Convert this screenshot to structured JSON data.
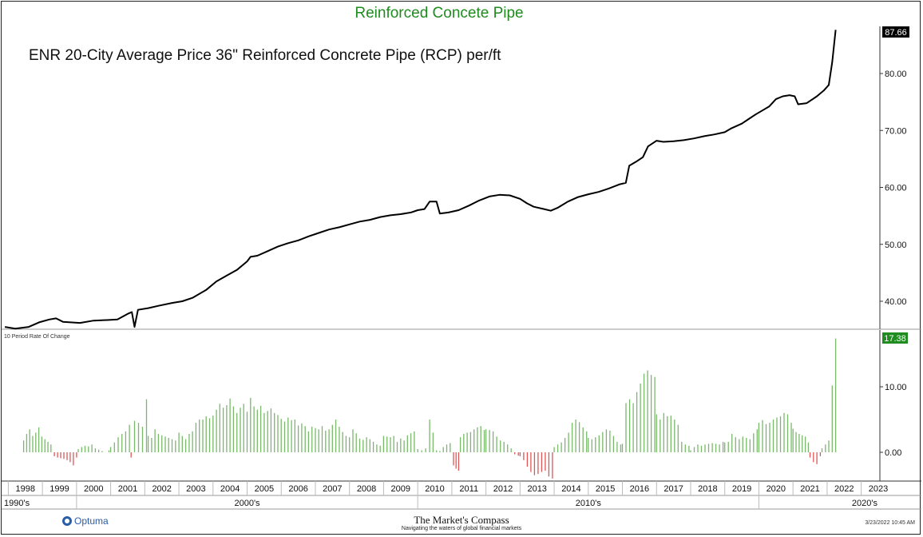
{
  "title": "Reinforced Concete Pipe",
  "chart_data": [
    {
      "type": "line",
      "title": "ENR 20-City Average Price 36\" Reinforced Concrete Pipe (RCP) per/ft",
      "ylim": [
        35.0,
        89.0
      ],
      "yticks": [
        "40.00",
        "50.00",
        "60.00",
        "70.00",
        "80.00"
      ],
      "last_value_label": "87.66",
      "x_range": [
        1997.85,
        2023.5
      ],
      "series": [
        {
          "points": [
            [
              1997.9,
              35.5
            ],
            [
              1998.2,
              35.2
            ],
            [
              1998.6,
              35.5
            ],
            [
              1998.9,
              36.3
            ],
            [
              1999.2,
              36.8
            ],
            [
              1999.4,
              37.0
            ],
            [
              1999.6,
              36.4
            ],
            [
              2000.1,
              36.2
            ],
            [
              2000.5,
              36.6
            ],
            [
              2000.9,
              36.7
            ],
            [
              2001.2,
              36.8
            ],
            [
              2001.5,
              37.8
            ],
            [
              2001.62,
              38.1
            ],
            [
              2001.7,
              35.5
            ],
            [
              2001.8,
              38.5
            ],
            [
              2002.1,
              38.8
            ],
            [
              2002.4,
              39.2
            ],
            [
              2002.8,
              39.7
            ],
            [
              2003.1,
              40.0
            ],
            [
              2003.4,
              40.6
            ],
            [
              2003.8,
              42.0
            ],
            [
              2004.1,
              43.5
            ],
            [
              2004.4,
              44.5
            ],
            [
              2004.7,
              45.5
            ],
            [
              2005.0,
              47.0
            ],
            [
              2005.1,
              47.8
            ],
            [
              2005.3,
              48.0
            ],
            [
              2005.6,
              48.8
            ],
            [
              2005.9,
              49.6
            ],
            [
              2006.2,
              50.2
            ],
            [
              2006.5,
              50.7
            ],
            [
              2006.8,
              51.4
            ],
            [
              2007.1,
              52.0
            ],
            [
              2007.4,
              52.6
            ],
            [
              2007.7,
              53.0
            ],
            [
              2008.0,
              53.5
            ],
            [
              2008.3,
              54.0
            ],
            [
              2008.6,
              54.3
            ],
            [
              2008.9,
              54.8
            ],
            [
              2009.2,
              55.1
            ],
            [
              2009.5,
              55.3
            ],
            [
              2009.8,
              55.6
            ],
            [
              2010.0,
              56.0
            ],
            [
              2010.2,
              56.2
            ],
            [
              2010.35,
              57.5
            ],
            [
              2010.55,
              57.5
            ],
            [
              2010.65,
              55.4
            ],
            [
              2010.9,
              55.6
            ],
            [
              2011.2,
              56.0
            ],
            [
              2011.5,
              56.8
            ],
            [
              2011.8,
              57.7
            ],
            [
              2012.1,
              58.4
            ],
            [
              2012.4,
              58.7
            ],
            [
              2012.7,
              58.6
            ],
            [
              2013.0,
              58.0
            ],
            [
              2013.2,
              57.2
            ],
            [
              2013.4,
              56.6
            ],
            [
              2013.7,
              56.2
            ],
            [
              2013.9,
              55.9
            ],
            [
              2014.1,
              56.4
            ],
            [
              2014.4,
              57.5
            ],
            [
              2014.7,
              58.3
            ],
            [
              2015.0,
              58.8
            ],
            [
              2015.3,
              59.2
            ],
            [
              2015.6,
              59.8
            ],
            [
              2015.9,
              60.5
            ],
            [
              2016.1,
              60.8
            ],
            [
              2016.2,
              63.8
            ],
            [
              2016.4,
              64.5
            ],
            [
              2016.6,
              65.3
            ],
            [
              2016.75,
              67.2
            ],
            [
              2017.0,
              68.2
            ],
            [
              2017.2,
              68.0
            ],
            [
              2017.5,
              68.1
            ],
            [
              2017.8,
              68.3
            ],
            [
              2018.1,
              68.6
            ],
            [
              2018.4,
              69.0
            ],
            [
              2018.7,
              69.3
            ],
            [
              2019.0,
              69.7
            ],
            [
              2019.2,
              70.4
            ],
            [
              2019.5,
              71.2
            ],
            [
              2019.7,
              72.0
            ],
            [
              2019.9,
              72.8
            ],
            [
              2020.1,
              73.5
            ],
            [
              2020.3,
              74.2
            ],
            [
              2020.5,
              75.5
            ],
            [
              2020.7,
              76.0
            ],
            [
              2020.9,
              76.2
            ],
            [
              2021.05,
              76.0
            ],
            [
              2021.15,
              74.6
            ],
            [
              2021.4,
              74.8
            ],
            [
              2021.7,
              76.0
            ],
            [
              2021.9,
              77.0
            ],
            [
              2022.05,
              78.0
            ],
            [
              2022.15,
              82.0
            ],
            [
              2022.25,
              87.66
            ]
          ]
        }
      ]
    },
    {
      "type": "bar",
      "title": "10 Period Rate Of Change",
      "ylim": [
        -5.0,
        18.0
      ],
      "yticks": [
        "0.00",
        "10.00"
      ],
      "last_value_label": "17.38",
      "bar_series": [
        {
          "from": 1998.45,
          "to": 1999.25,
          "values": [
            1.8,
            2.8,
            3.5,
            2.5,
            3.0,
            3.8,
            2.4,
            2.0,
            1.6,
            1.2
          ]
        },
        {
          "from": 1999.35,
          "to": 2000.0,
          "values": [
            -0.6,
            -0.8,
            -0.9,
            -1.0,
            -1.2,
            -1.5,
            -2.0,
            -0.8
          ]
        },
        {
          "from": 2000.05,
          "to": 2000.95,
          "values": [
            0.5,
            0.8,
            1.0,
            0.9,
            1.2,
            0.6,
            0.4,
            0.2,
            0.0,
            0.3
          ]
        },
        {
          "from": 2001.0,
          "to": 2001.55,
          "values": [
            0.8,
            1.5,
            2.3,
            2.8,
            3.2,
            4.2
          ]
        },
        {
          "from": 2001.6,
          "to": 2001.6,
          "values": [
            -0.8
          ]
        },
        {
          "from": 2001.7,
          "to": 2002.05,
          "values": [
            4.8,
            4.5,
            3.9,
            8.1
          ]
        },
        {
          "from": 2002.1,
          "to": 2002.9,
          "values": [
            2.5,
            2.2,
            3.5,
            2.8,
            2.6,
            2.4,
            2.2,
            2.0,
            1.8
          ]
        },
        {
          "from": 2003.0,
          "to": 2003.6,
          "values": [
            3.0,
            2.5,
            2.0,
            2.8,
            3.2,
            4.5,
            5.0
          ]
        },
        {
          "from": 2003.7,
          "to": 2004.9,
          "values": [
            5.0,
            5.5,
            5.2,
            5.6,
            6.5,
            7.4,
            6.8,
            7.2,
            8.2,
            7.0,
            6.0,
            6.8,
            7.4
          ]
        },
        {
          "from": 2005.0,
          "to": 2005.9,
          "values": [
            6.2,
            8.3,
            7.0,
            6.5,
            7.1,
            6.0,
            6.3,
            6.7,
            6.0,
            5.7
          ]
        },
        {
          "from": 2006.0,
          "to": 2006.9,
          "values": [
            5.1,
            4.7,
            5.3,
            4.9,
            5.0,
            4.1,
            4.4,
            4.0,
            3.2,
            3.9
          ]
        },
        {
          "from": 2007.0,
          "to": 2007.9,
          "values": [
            3.7,
            3.5,
            4.0,
            3.3,
            3.5,
            4.2,
            5.0,
            3.9,
            3.1,
            2.5
          ]
        },
        {
          "from": 2008.0,
          "to": 2008.9,
          "values": [
            2.3,
            3.5,
            2.9,
            2.1,
            1.9,
            2.3,
            2.0,
            1.6,
            1.2,
            1.0
          ]
        },
        {
          "from": 2009.0,
          "to": 2009.9,
          "values": [
            2.5,
            2.4,
            2.3,
            2.5,
            1.6,
            2.1,
            1.8,
            2.6,
            2.9,
            3.2
          ]
        },
        {
          "from": 2010.0,
          "to": 2010.35,
          "values": [
            0.5,
            0.3,
            0.6,
            5.0
          ]
        },
        {
          "from": 2010.45,
          "to": 2010.95,
          "values": [
            3.0,
            0.3,
            0.2,
            0.8,
            1.2,
            1.4
          ]
        },
        {
          "from": 2011.05,
          "to": 2011.2,
          "values": [
            -2.0,
            -2.5,
            -2.8
          ]
        },
        {
          "from": 2011.25,
          "to": 2011.95,
          "values": [
            2.3,
            2.8,
            3.0,
            3.1,
            3.5,
            3.8,
            4.0,
            3.4
          ]
        },
        {
          "from": 2012.0,
          "to": 2012.95,
          "values": [
            3.5,
            3.4,
            3.2,
            2.4,
            1.8,
            1.6,
            1.2,
            0.6,
            -0.3,
            -0.5
          ]
        },
        {
          "from": 2013.0,
          "to": 2013.95,
          "values": [
            -0.6,
            -1.2,
            -2.2,
            -3.0,
            -3.5,
            -3.3,
            -3.0,
            -2.8,
            -3.7,
            -4.0
          ]
        },
        {
          "from": 2014.0,
          "to": 2014.95,
          "values": [
            0.8,
            1.2,
            1.5,
            2.2,
            3.0,
            4.5,
            5.0,
            4.6,
            3.8,
            3.2
          ]
        },
        {
          "from": 2015.0,
          "to": 2015.95,
          "values": [
            2.2,
            2.0,
            2.3,
            2.6,
            3.1,
            3.5,
            3.3,
            2.5,
            1.6,
            1.2
          ]
        },
        {
          "from": 2016.0,
          "to": 2016.95,
          "values": [
            1.3,
            7.5,
            8.1,
            7.5,
            9.2,
            10.5,
            12.0,
            12.5,
            11.8,
            11.5
          ]
        },
        {
          "from": 2017.0,
          "to": 2017.95,
          "values": [
            5.8,
            5.0,
            6.0,
            5.5,
            5.6,
            5.0,
            4.2,
            1.6,
            1.2,
            1.0
          ]
        },
        {
          "from": 2018.0,
          "to": 2018.95,
          "values": [
            0.3,
            0.8,
            1.2,
            1.0,
            1.2,
            1.3,
            1.4,
            1.3,
            1.2,
            1.6
          ]
        },
        {
          "from": 2019.0,
          "to": 2019.95,
          "values": [
            1.5,
            1.6,
            2.8,
            2.3,
            2.0,
            2.4,
            2.2,
            2.0,
            2.9,
            3.5
          ]
        },
        {
          "from": 2020.0,
          "to": 2020.95,
          "values": [
            4.5,
            4.9,
            4.3,
            4.5,
            5.0,
            5.3,
            5.5,
            6.0,
            5.8,
            4.5
          ]
        },
        {
          "from": 2021.0,
          "to": 2021.45,
          "values": [
            3.6,
            3.1,
            2.8,
            2.6,
            2.4,
            1.5
          ]
        },
        {
          "from": 2021.5,
          "to": 2021.8,
          "values": [
            -0.8,
            -1.5,
            -1.8,
            -0.6
          ]
        },
        {
          "from": 2021.85,
          "to": 2022.25,
          "values": [
            0.6,
            1.2,
            1.8,
            10.2,
            17.38
          ]
        }
      ]
    }
  ],
  "x_axis": {
    "years": [
      "1998",
      "1999",
      "2000",
      "2001",
      "2002",
      "2003",
      "2004",
      "2005",
      "2006",
      "2007",
      "2008",
      "2009",
      "2010",
      "2011",
      "2012",
      "2013",
      "2014",
      "2015",
      "2016",
      "2017",
      "2018",
      "2019",
      "2020",
      "2021",
      "2022",
      "2023"
    ],
    "decades": [
      "1990's",
      "2000's",
      "2010's",
      "2020's"
    ]
  },
  "colors": {
    "title": "#1e8c1e",
    "line": "#000000",
    "positive_bar": "#79b86b",
    "negative_bar": "#e05656",
    "price_badge": "#000000",
    "roc_badge": "#1e8c1e"
  },
  "footer": {
    "logo_text": "Optuma",
    "brand": "The Market's Compass",
    "tagline": "Navigating the waters of global financial markets",
    "timestamp": "3/23/2022 10:45 AM"
  }
}
